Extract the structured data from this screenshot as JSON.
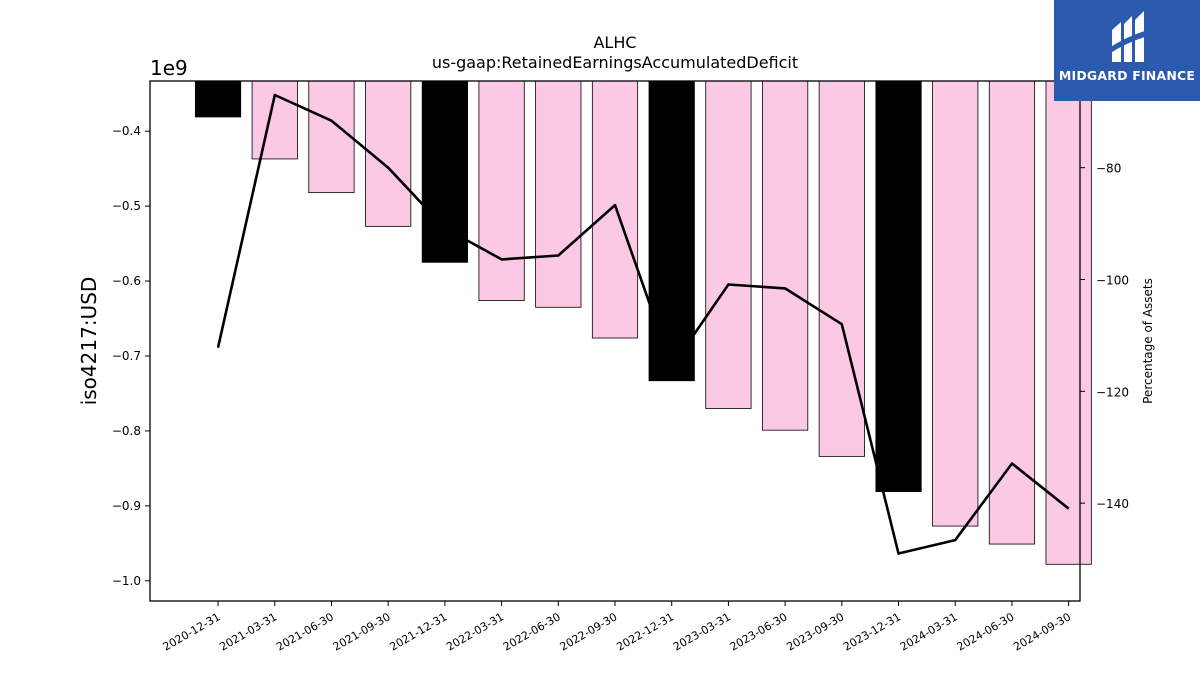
{
  "logo": {
    "text": "MIDGARD FINANCE",
    "background": "#2b5aae",
    "icon": "midgard-logo-icon"
  },
  "chart_data": {
    "type": "bar",
    "title": "ALHC",
    "subtitle": "us-gaap:RetainedEarningsAccumulatedDeficit",
    "ylabel": "iso4217:USD",
    "y_offset_label": "1e9",
    "y2label": "Percentage of Assets",
    "categories": [
      "2020-12-31",
      "2021-03-31",
      "2021-06-30",
      "2021-09-30",
      "2021-12-31",
      "2022-03-31",
      "2022-06-30",
      "2022-09-30",
      "2022-12-31",
      "2023-03-31",
      "2023-06-30",
      "2023-09-30",
      "2023-12-31",
      "2024-03-31",
      "2024-06-30",
      "2024-09-30"
    ],
    "values": [
      -0.381,
      -0.437,
      -0.482,
      -0.527,
      -0.575,
      -0.626,
      -0.635,
      -0.676,
      -0.733,
      -0.77,
      -0.799,
      -0.834,
      -0.881,
      -0.927,
      -0.951,
      -0.978
    ],
    "bar_colors": [
      "#000000",
      "#fcc9e4",
      "#fcc9e4",
      "#fcc9e4",
      "#000000",
      "#fcc9e4",
      "#fcc9e4",
      "#fcc9e4",
      "#000000",
      "#fcc9e4",
      "#fcc9e4",
      "#fcc9e4",
      "#000000",
      "#fcc9e4",
      "#fcc9e4",
      "#fcc9e4"
    ],
    "ylim": [
      -1.027,
      -0.333
    ],
    "yticks": [
      -1.0,
      -0.9,
      -0.8,
      -0.7,
      -0.6,
      -0.5,
      -0.4
    ],
    "series": [
      {
        "name": "",
        "axis": "right",
        "type": "line",
        "color": "#000000",
        "values": [
          -112.2,
          -67.0,
          -71.6,
          -80.0,
          -90.8,
          -96.4,
          -95.7,
          -86.7,
          -115.6,
          -100.9,
          -101.6,
          -108.0,
          -149.0,
          -146.6,
          -132.9,
          -141.0
        ]
      }
    ],
    "y2lim": [
      -157.5,
      -64.5
    ],
    "y2ticks": [
      -140,
      -120,
      -100,
      -80
    ],
    "grid": false,
    "legend": "none"
  }
}
